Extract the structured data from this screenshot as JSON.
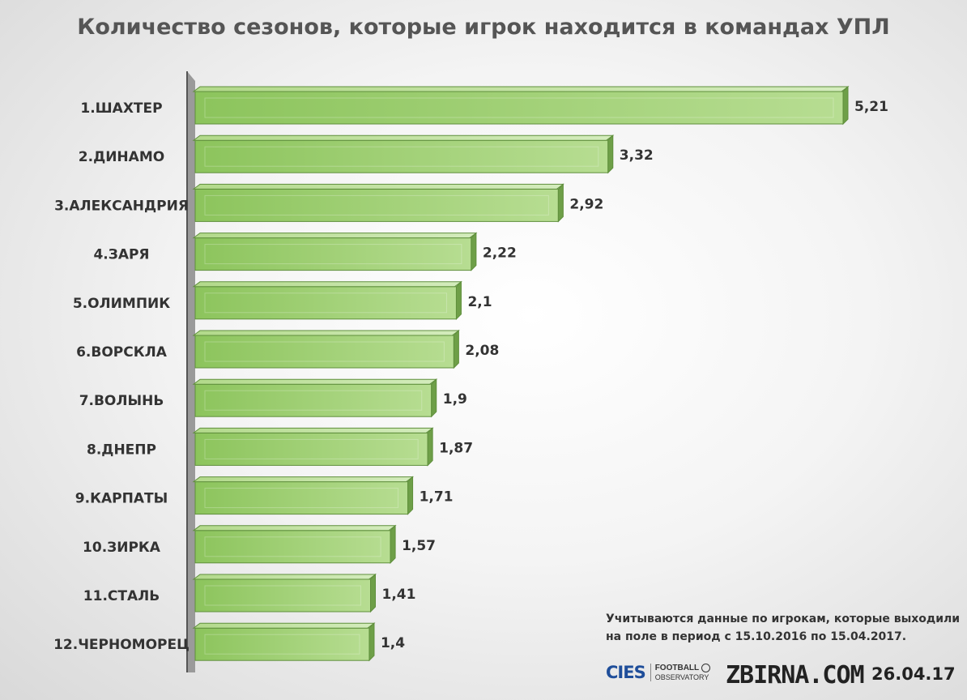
{
  "title": "Количество сезонов, которые игрок находится в командах УПЛ",
  "chart_data": {
    "type": "bar",
    "orientation": "horizontal",
    "title": "Количество сезонов, которые игрок находится в командах УПЛ",
    "categories": [
      "1.ШАХТЕР",
      "2.ДИНАМО",
      "3.АЛЕКСАНДРИЯ",
      "4.ЗАРЯ",
      "5.ОЛИМПИК",
      "6.ВОРСКЛА",
      "7.ВОЛЫНЬ",
      "8.ДНЕПР",
      "9.КАРПАТЫ",
      "10.ЗИРКА",
      "11.СТАЛЬ",
      "12.ЧЕРНОМОРЕЦ"
    ],
    "values": [
      5.21,
      3.32,
      2.92,
      2.22,
      2.1,
      2.08,
      1.9,
      1.87,
      1.71,
      1.57,
      1.41,
      1.4
    ],
    "value_labels": [
      "5,21",
      "3,32",
      "2,92",
      "2,22",
      "2,1",
      "2,08",
      "1,9",
      "1,87",
      "1,71",
      "1,57",
      "1,41",
      "1,4"
    ],
    "xlim": [
      0,
      5.21
    ],
    "grid": false,
    "bar_color": "#9ccf6d"
  },
  "note": {
    "line1": "Учитываются данные по игрокам, которые выходили",
    "line2": "на поле в период с 15.10.2016 по 15.04.2017."
  },
  "footer": {
    "cies": "CIES",
    "football": "FOOTBALL",
    "observatory": "OBSERVATORY",
    "site": "ZBIRNA.COM",
    "date": "26.04.17"
  },
  "colors": {
    "bar_fill": "#9ccf6d",
    "bar_edge": "#5f8f3c",
    "axis_wall": "#8a8a8a",
    "text": "#333333"
  }
}
